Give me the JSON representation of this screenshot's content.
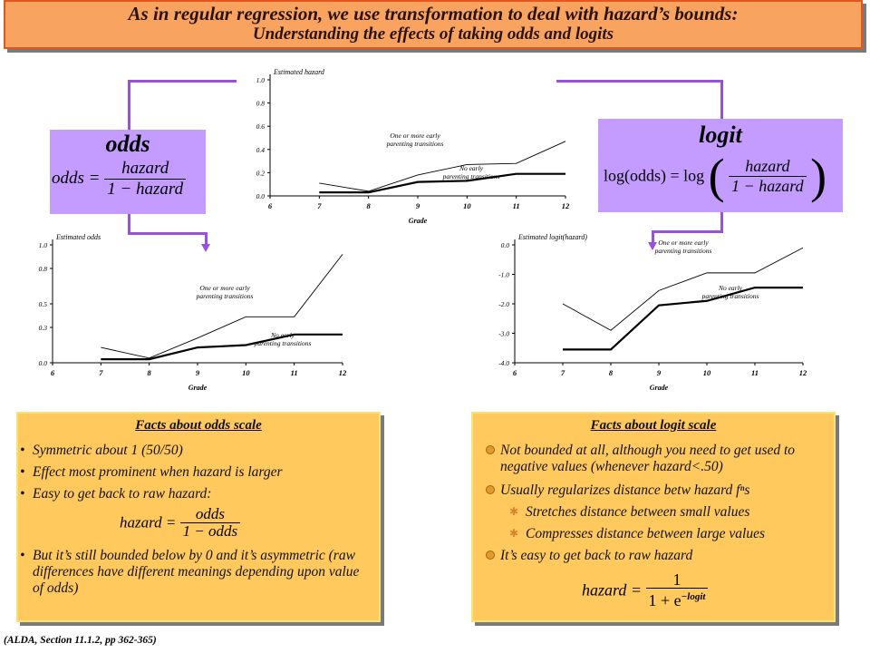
{
  "title": {
    "line1": "As in regular regression, we use transformation to deal with hazard’s bounds:",
    "line2": "Understanding the effects of taking odds and logits"
  },
  "odds_box": {
    "title": "odds",
    "lhs": "odds =",
    "num": "hazard",
    "den": "1 − hazard"
  },
  "logit_box": {
    "title": "logit",
    "lhs": "log(odds) = log",
    "num": "hazard",
    "den": "1 − hazard"
  },
  "chart_data": [
    {
      "id": "hazard",
      "type": "line",
      "ylabel": "Estimated hazard",
      "xlabel": "Grade",
      "xlim": [
        6,
        12
      ],
      "ylim": [
        0,
        1.0
      ],
      "xticks": [
        "6",
        "7",
        "8",
        "9",
        "10",
        "11",
        "12"
      ],
      "yticks": [
        "0.0",
        "0.2",
        "0.4",
        "0.6",
        "0.8",
        "1.0"
      ],
      "series": [
        {
          "name": "One or more early parenting transitions",
          "x": [
            7,
            8,
            9,
            10,
            11,
            12
          ],
          "values": [
            0.11,
            0.04,
            0.18,
            0.27,
            0.28,
            0.47
          ]
        },
        {
          "name": "No early parenting transitions",
          "x": [
            7,
            8,
            9,
            10,
            11,
            12
          ],
          "values": [
            0.03,
            0.03,
            0.12,
            0.13,
            0.19,
            0.19
          ]
        }
      ],
      "annotations": [
        {
          "lines": [
            "One or more early",
            "parenting transitions"
          ],
          "series": 0
        },
        {
          "lines": [
            "No early",
            "parenting transitions"
          ],
          "series": 1
        }
      ]
    },
    {
      "id": "odds",
      "type": "line",
      "ylabel": "Estimated odds",
      "xlabel": "Grade",
      "xlim": [
        6,
        12
      ],
      "ylim": [
        0,
        1.0
      ],
      "xticks": [
        "6",
        "7",
        "8",
        "9",
        "10",
        "11",
        "12"
      ],
      "yticks": [
        "0.0",
        "0.3",
        "0.5",
        "0.8",
        "1.0"
      ],
      "series": [
        {
          "name": "One or more early parenting transitions",
          "x": [
            7,
            8,
            9,
            10,
            11,
            12
          ],
          "values": [
            0.13,
            0.04,
            0.21,
            0.39,
            0.39,
            0.92
          ]
        },
        {
          "name": "No early parenting transitions",
          "x": [
            7,
            8,
            9,
            10,
            11,
            12
          ],
          "values": [
            0.03,
            0.03,
            0.13,
            0.15,
            0.24,
            0.24
          ]
        }
      ],
      "annotations": [
        {
          "lines": [
            "One or more early",
            "parenting transitions"
          ],
          "series": 0
        },
        {
          "lines": [
            "No early",
            "parenting transitions"
          ],
          "series": 1
        }
      ]
    },
    {
      "id": "logit",
      "type": "line",
      "ylabel": "Estimated logit(hazard)",
      "xlabel": "Grade",
      "xlim": [
        6,
        12
      ],
      "ylim": [
        -4.0,
        0.0
      ],
      "xticks": [
        "6",
        "7",
        "8",
        "9",
        "10",
        "11",
        "12"
      ],
      "yticks": [
        "0.0",
        "-1.0",
        "-2.0",
        "-3.0",
        "-4.0"
      ],
      "series": [
        {
          "name": "One or more early parenting transitions",
          "x": [
            7,
            8,
            9,
            10,
            11,
            12
          ],
          "values": [
            -2.0,
            -2.9,
            -1.55,
            -0.95,
            -0.95,
            -0.1
          ]
        },
        {
          "name": "No early parenting transitions",
          "x": [
            7,
            8,
            9,
            10,
            11,
            12
          ],
          "values": [
            -3.55,
            -3.55,
            -2.05,
            -1.9,
            -1.45,
            -1.45
          ]
        }
      ],
      "annotations": [
        {
          "lines": [
            "One or more early",
            "parenting transitions"
          ],
          "series": 0
        },
        {
          "lines": [
            "No early",
            "parenting transitions"
          ],
          "series": 1
        }
      ]
    }
  ],
  "odds_facts": {
    "title": "Facts about odds scale",
    "items": [
      "Symmetric about 1 (50/50)",
      "Effect most prominent when hazard is larger",
      "Easy to get back to raw hazard:",
      "But it’s still bounded below by 0 and it’s asymmetric (raw differences have different meanings depending upon value of odds)"
    ],
    "formula": {
      "lhs": "hazard =",
      "num": "odds",
      "den": "1 − odds"
    }
  },
  "logit_facts": {
    "title": "Facts about logit scale",
    "items": [
      "Not bounded at all, although you need to get used to negative values (whenever hazard<.50)",
      "Usually regularizes distance betw hazard fⁿs",
      "It’s easy to get back to raw hazard"
    ],
    "subitems": [
      "Stretches distance between small values",
      "Compresses distance between large values"
    ],
    "formula": {
      "lhs": "hazard =",
      "num": "1",
      "den_base": "1 + e",
      "den_exp": "−logit"
    }
  },
  "footer": "(ALDA, Section 11.1.2, pp 362-365)",
  "colors": {
    "title_bg": "#f9a360",
    "title_border": "#e2571c",
    "formula_bg": "#c49cff",
    "connector": "#9a4fe0",
    "facts_bg": "#ffc95e"
  }
}
